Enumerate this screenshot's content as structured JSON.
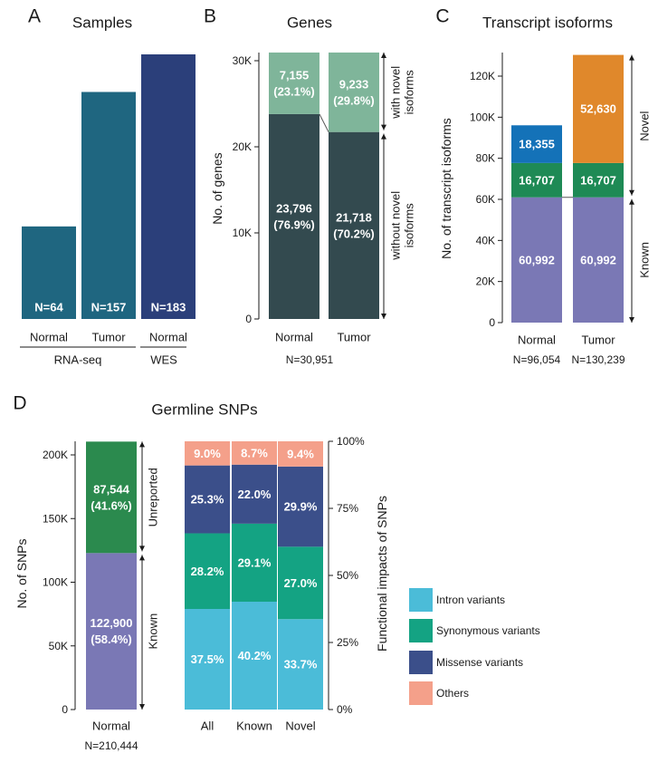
{
  "colors": {
    "rnaseq": "#1f6680",
    "wes": "#2b3f7a",
    "gene_novel": "#7fb59a",
    "gene_without": "#334a4f",
    "iso_known": "#7a78b5",
    "iso_green": "#1e8a55",
    "iso_blue": "#1472b8",
    "iso_orange": "#e0882b",
    "snp_unreported": "#2b8a4e",
    "snp_known": "#7a78b5",
    "intron": "#4bbcd8",
    "synonymous": "#14a383",
    "missense": "#3b4f8a",
    "others": "#f4a08a"
  },
  "panel_a": {
    "letter": "A",
    "chart_data": {
      "type": "bar",
      "title": "Samples",
      "categories": [
        "Normal",
        "Tumor",
        "Normal"
      ],
      "groups": [
        {
          "label": "RNA-seq",
          "categories": [
            "Normal",
            "Tumor"
          ]
        },
        {
          "label": "WES",
          "categories": [
            "Normal"
          ]
        }
      ],
      "values": [
        64,
        157,
        183
      ],
      "data_labels": [
        "N=64",
        "N=157",
        "N=183"
      ],
      "ylim": [
        0,
        183
      ]
    }
  },
  "panel_b": {
    "letter": "B",
    "footer": "N=30,951",
    "chart_data": {
      "type": "bar",
      "stacked": true,
      "title": "Genes",
      "ylabel": "No. of genes",
      "categories": [
        "Normal",
        "Tumor"
      ],
      "ylim": [
        0,
        31000
      ],
      "yticks": [
        0,
        10000,
        20000,
        30000
      ],
      "ytick_labels": [
        "0",
        "10K",
        "20K",
        "30K"
      ],
      "series": [
        {
          "key": "without",
          "values": [
            23796,
            21718
          ],
          "labels": [
            [
              "23,796",
              "(76.9%)"
            ],
            [
              "21,718",
              "(70.2%)"
            ]
          ]
        },
        {
          "key": "with",
          "values": [
            7155,
            9233
          ],
          "labels": [
            [
              "7,155",
              "(23.1%)"
            ],
            [
              "9,233",
              "(29.8%)"
            ]
          ]
        }
      ],
      "annotations": [
        {
          "lines": [
            "with novel",
            "isoforms"
          ]
        },
        {
          "lines": [
            "without novel",
            "isoforms"
          ]
        }
      ]
    }
  },
  "panel_c": {
    "letter": "C",
    "footers": [
      "N=96,054",
      "N=130,239"
    ],
    "chart_data": {
      "type": "bar",
      "stacked": true,
      "title": "Transcript isoforms",
      "ylabel": "No. of transcript isoforms",
      "categories": [
        "Normal",
        "Tumor"
      ],
      "ylim": [
        0,
        130000
      ],
      "yticks": [
        0,
        20000,
        40000,
        60000,
        80000,
        100000,
        120000
      ],
      "ytick_labels": [
        "0",
        "20K",
        "40K",
        "60K",
        "80K",
        "100K",
        "120K"
      ],
      "stacks": [
        [
          {
            "value": 60992,
            "label": "60,992",
            "color": "iso_known"
          },
          {
            "value": 16707,
            "label": "16,707",
            "color": "iso_green"
          },
          {
            "value": 18355,
            "label": "18,355",
            "color": "iso_blue"
          }
        ],
        [
          {
            "value": 60992,
            "label": "60,992",
            "color": "iso_known"
          },
          {
            "value": 16707,
            "label": "16,707",
            "color": "iso_green"
          },
          {
            "value": 52630,
            "label": "52,630",
            "color": "iso_orange"
          }
        ]
      ],
      "annotations": [
        "Novel",
        "Known"
      ]
    }
  },
  "panel_d": {
    "letter": "D",
    "title": "Germline SNPs",
    "left": {
      "footer": "N=210,444",
      "chart_data": {
        "type": "bar",
        "stacked": true,
        "ylabel": "No. of SNPs",
        "categories": [
          "Normal"
        ],
        "ylim": [
          0,
          210444
        ],
        "yticks": [
          0,
          50000,
          100000,
          150000,
          200000
        ],
        "ytick_labels": [
          "0",
          "50K",
          "100K",
          "150K",
          "200K"
        ],
        "series": [
          {
            "key": "known",
            "value": 122900,
            "labels": [
              "122,900",
              "(58.4%)"
            ]
          },
          {
            "key": "unreported",
            "value": 87544,
            "labels": [
              "87,544",
              "(41.6%)"
            ]
          }
        ],
        "annotations": [
          "Unreported",
          "Known"
        ]
      }
    },
    "right": {
      "chart_data": {
        "type": "bar",
        "stacked": true,
        "percent": true,
        "ylabel": "Functional impacts of SNPs",
        "categories": [
          "All",
          "Known",
          "Novel"
        ],
        "ylim": [
          0,
          100
        ],
        "yticks": [
          0,
          25,
          50,
          75,
          100
        ],
        "ytick_labels": [
          "0%",
          "25%",
          "50%",
          "75%",
          "100%"
        ],
        "series": [
          {
            "name": "Intron variants",
            "color": "intron",
            "values": [
              37.5,
              40.2,
              33.7
            ],
            "labels": [
              "37.5%",
              "40.2%",
              "33.7%"
            ]
          },
          {
            "name": "Synonymous variants",
            "color": "synonymous",
            "values": [
              28.2,
              29.1,
              27.0
            ],
            "labels": [
              "28.2%",
              "29.1%",
              "27.0%"
            ]
          },
          {
            "name": "Missense variants",
            "color": "missense",
            "values": [
              25.3,
              22.0,
              29.9
            ],
            "labels": [
              "25.3%",
              "22.0%",
              "29.9%"
            ]
          },
          {
            "name": "Others",
            "color": "others",
            "values": [
              9.0,
              8.7,
              9.4
            ],
            "labels": [
              "9.0%",
              "8.7%",
              "9.4%"
            ]
          }
        ],
        "legend_position": "right"
      }
    }
  }
}
